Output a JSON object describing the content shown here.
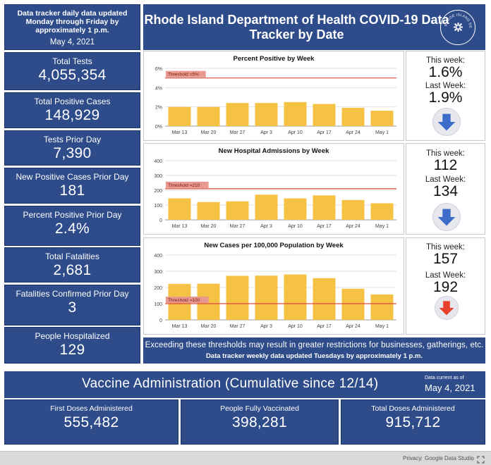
{
  "header": {
    "update_notice": "Data tracker daily data updated Monday through Friday by approximately 1 p.m.",
    "update_date": "May 4, 2021",
    "title": "Rhode Island Department of Health COVID-19 Data Tracker by Date",
    "seal_icon": "ri-health-seal-icon",
    "seal_text": "RHODE ISLAND DEPARTMENT OF HEALTH"
  },
  "stats": [
    {
      "label": "Total Tests",
      "value": "4,055,354"
    },
    {
      "label": "Total Positive Cases",
      "value": "148,929"
    },
    {
      "label": "Tests Prior Day",
      "value": "7,390"
    },
    {
      "label": "New Positive Cases Prior Day",
      "value": "181"
    },
    {
      "label": "Percent Positive Prior Day",
      "value": "2.4%"
    },
    {
      "label": "Total Fatalities",
      "value": "2,681"
    },
    {
      "label": "Fatalities Confirmed Prior Day",
      "value": "3"
    },
    {
      "label": "People Hospitalized",
      "value": "129"
    }
  ],
  "weekly": [
    {
      "this_label": "This week:",
      "this_value": "1.6%",
      "last_label": "Last Week:",
      "last_value": "1.9%",
      "arrow_icon": "arrow-down-icon",
      "arrow_color": "#3d6cc9"
    },
    {
      "this_label": "This week:",
      "this_value": "112",
      "last_label": "Last Week:",
      "last_value": "134",
      "arrow_icon": "arrow-down-icon",
      "arrow_color": "#3d6cc9"
    },
    {
      "this_label": "This week:",
      "this_value": "157",
      "last_label": "Last Week:",
      "last_value": "192",
      "arrow_icon": "arrow-down-icon",
      "arrow_color": "#e8402b"
    }
  ],
  "footnote": {
    "thresholds": "Exceeding these thresholds may result in greater restrictions for businesses, gatherings, etc.",
    "weekly_update": "Data tracker weekly data updated Tuesdays by approximately 1 p.m."
  },
  "vaccine": {
    "title": "Vaccine Administration (Cumulative since 12/14)",
    "as_of_label": "Data current as of",
    "as_of_date": "May 4, 2021",
    "cards": [
      {
        "label": "First Doses Administered",
        "value": "555,482"
      },
      {
        "label": "People Fully Vaccinated",
        "value": "398,281"
      },
      {
        "label": "Total Doses Administered",
        "value": "915,712"
      }
    ]
  },
  "footer": {
    "privacy": "Privacy",
    "brand": "Google Data Studio",
    "fullscreen_icon": "fullscreen-icon"
  },
  "colors": {
    "brand_blue": "#2e4b8a",
    "bar": "#f6c244",
    "threshold": "#d84a3b"
  },
  "chart_data": [
    {
      "type": "bar",
      "title": "Percent Positive by Week",
      "categories": [
        "Mar 13",
        "Mar 20",
        "Mar 27",
        "Apr 3",
        "Apr 10",
        "Apr 17",
        "Apr 24",
        "May 1"
      ],
      "values": [
        2.0,
        2.0,
        2.4,
        2.4,
        2.5,
        2.3,
        1.9,
        1.6
      ],
      "ylim": [
        0,
        6
      ],
      "yticks": [
        "0%",
        "2%",
        "4%",
        "6%"
      ],
      "ytick_values": [
        0,
        2,
        4,
        6
      ],
      "threshold": {
        "value": 5,
        "label": "Threshold =5%"
      }
    },
    {
      "type": "bar",
      "title": "New Hospital Admissions by Week",
      "categories": [
        "Mar 13",
        "Mar 20",
        "Mar 27",
        "Apr 3",
        "Apr 10",
        "Apr 17",
        "Apr 24",
        "May 1"
      ],
      "values": [
        145,
        120,
        125,
        170,
        145,
        165,
        134,
        112
      ],
      "ylim": [
        0,
        400
      ],
      "yticks": [
        "0",
        "100",
        "200",
        "300",
        "400"
      ],
      "ytick_values": [
        0,
        100,
        200,
        300,
        400
      ],
      "threshold": {
        "value": 210,
        "label": "Threshold =210"
      }
    },
    {
      "type": "bar",
      "title": "New Cases per 100,000 Population by Week",
      "categories": [
        "Mar 13",
        "Mar 20",
        "Mar 27",
        "Apr 3",
        "Apr 10",
        "Apr 17",
        "Apr 24",
        "May 1"
      ],
      "values": [
        222,
        223,
        272,
        273,
        280,
        257,
        192,
        157
      ],
      "ylim": [
        0,
        400
      ],
      "yticks": [
        "0",
        "100",
        "200",
        "300",
        "400"
      ],
      "ytick_values": [
        0,
        100,
        200,
        300,
        400
      ],
      "threshold": {
        "value": 100,
        "label": "Threshold =100"
      }
    }
  ]
}
